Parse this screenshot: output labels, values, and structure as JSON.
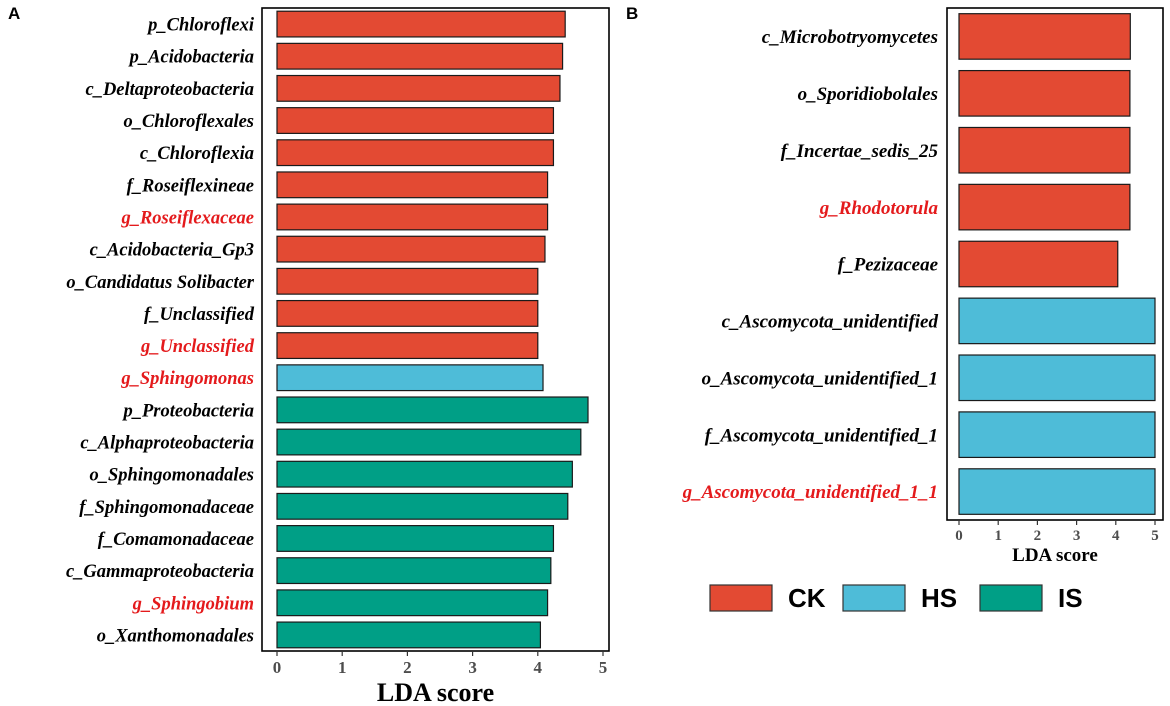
{
  "chart_data": [
    {
      "panel": "A",
      "type": "bar",
      "orientation": "horizontal",
      "xlabel": "LDA score",
      "xlim": [
        0,
        5
      ],
      "xticks": [
        "0",
        "1",
        "2",
        "3",
        "4",
        "5"
      ],
      "bars": [
        {
          "label": "p_Chloroflexi",
          "value": 4.42,
          "group": "CK",
          "highlight": false
        },
        {
          "label": "p_Acidobacteria",
          "value": 4.38,
          "group": "CK",
          "highlight": false
        },
        {
          "label": "c_Deltaproteobacteria",
          "value": 4.34,
          "group": "CK",
          "highlight": false
        },
        {
          "label": "o_Chloroflexales",
          "value": 4.24,
          "group": "CK",
          "highlight": false
        },
        {
          "label": "c_Chloroflexia",
          "value": 4.24,
          "group": "CK",
          "highlight": false
        },
        {
          "label": "f_Roseiflexineae",
          "value": 4.15,
          "group": "CK",
          "highlight": false
        },
        {
          "label": "g_Roseiflexaceae",
          "value": 4.15,
          "group": "CK",
          "highlight": true
        },
        {
          "label": "c_Acidobacteria_Gp3",
          "value": 4.11,
          "group": "CK",
          "highlight": false
        },
        {
          "label": "o_Candidatus Solibacter",
          "value": 4.0,
          "group": "CK",
          "highlight": false
        },
        {
          "label": "f_Unclassified",
          "value": 4.0,
          "group": "CK",
          "highlight": false
        },
        {
          "label": "g_Unclassified",
          "value": 4.0,
          "group": "CK",
          "highlight": true
        },
        {
          "label": "g_Sphingomonas",
          "value": 4.08,
          "group": "HS",
          "highlight": true
        },
        {
          "label": "p_Proteobacteria",
          "value": 4.77,
          "group": "IS",
          "highlight": false
        },
        {
          "label": "c_Alphaproteobacteria",
          "value": 4.66,
          "group": "IS",
          "highlight": false
        },
        {
          "label": "o_Sphingomonadales",
          "value": 4.53,
          "group": "IS",
          "highlight": false
        },
        {
          "label": "f_Sphingomonadaceae",
          "value": 4.46,
          "group": "IS",
          "highlight": false
        },
        {
          "label": "f_Comamonadaceae",
          "value": 4.24,
          "group": "IS",
          "highlight": false
        },
        {
          "label": "c_Gammaproteobacteria",
          "value": 4.2,
          "group": "IS",
          "highlight": false
        },
        {
          "label": "g_Sphingobium",
          "value": 4.15,
          "group": "IS",
          "highlight": true
        },
        {
          "label": "o_Xanthomonadales",
          "value": 4.04,
          "group": "IS",
          "highlight": false
        }
      ]
    },
    {
      "panel": "B",
      "type": "bar",
      "orientation": "horizontal",
      "xlabel": "LDA score",
      "xlim": [
        0,
        5
      ],
      "xticks": [
        "0",
        "1",
        "2",
        "3",
        "4",
        "5"
      ],
      "bars": [
        {
          "label": "c_Microbotryomycetes",
          "value": 4.37,
          "group": "CK",
          "highlight": false
        },
        {
          "label": "o_Sporidiobolales",
          "value": 4.36,
          "group": "CK",
          "highlight": false
        },
        {
          "label": "f_Incertae_sedis_25",
          "value": 4.36,
          "group": "CK",
          "highlight": false
        },
        {
          "label": "g_Rhodotorula",
          "value": 4.36,
          "group": "CK",
          "highlight": true
        },
        {
          "label": "f_Pezizaceae",
          "value": 4.05,
          "group": "CK",
          "highlight": false
        },
        {
          "label": "c_Ascomycota_unidentified",
          "value": 5.0,
          "group": "HS",
          "highlight": false
        },
        {
          "label": "o_Ascomycota_unidentified_1",
          "value": 5.0,
          "group": "HS",
          "highlight": false
        },
        {
          "label": "f_Ascomycota_unidentified_1",
          "value": 5.0,
          "group": "HS",
          "highlight": false
        },
        {
          "label": "g_Ascomycota_unidentified_1_1",
          "value": 5.0,
          "group": "HS",
          "highlight": true
        }
      ]
    }
  ],
  "legend": [
    {
      "label": "CK",
      "color": "#e34a33"
    },
    {
      "label": "HS",
      "color": "#4ebcd8"
    },
    {
      "label": "IS",
      "color": "#009f86"
    }
  ],
  "colors": {
    "CK": "#e34a33",
    "HS": "#4ebcd8",
    "IS": "#009f86",
    "highlight_text": "#e41a1c",
    "normal_text": "#000000"
  },
  "panel_letters": [
    "A",
    "B"
  ]
}
